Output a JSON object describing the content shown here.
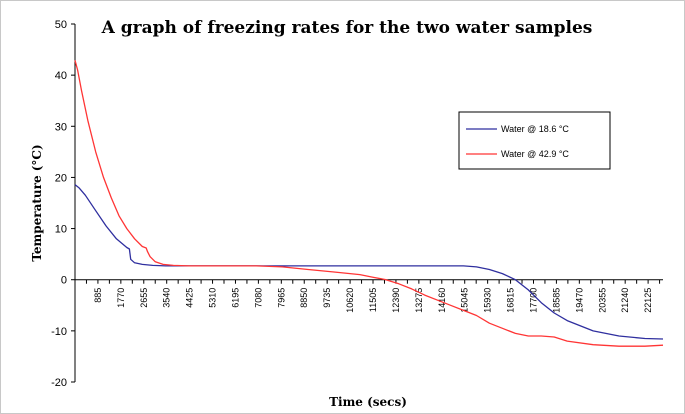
{
  "chart_data": {
    "type": "line",
    "title": "A graph of freezing rates for the two water samples",
    "xlabel": "Time (secs)",
    "ylabel": "Temperature (°C)",
    "xlim": [
      0,
      22700
    ],
    "ylim": [
      -20,
      50
    ],
    "y_ticks": [
      50,
      40,
      30,
      20,
      10,
      0,
      -10,
      -20
    ],
    "x_ticks": [
      "885",
      "1770",
      "2655",
      "3540",
      "4425",
      "5310",
      "6195",
      "7080",
      "7965",
      "8850",
      "9735",
      "10620",
      "11505",
      "12390",
      "13275",
      "14160",
      "15045",
      "15930",
      "16815",
      "17700",
      "18585",
      "19470",
      "20355",
      "21240",
      "22125"
    ],
    "legend_position": "right",
    "series": [
      {
        "name": "Water @ 18.6 °C",
        "color": "#2f2f9f",
        "x": [
          0,
          150,
          400,
          800,
          1200,
          1600,
          2000,
          2100,
          2150,
          2300,
          2600,
          3000,
          3500,
          4500,
          6000,
          8000,
          10000,
          12000,
          14000,
          15000,
          15500,
          16000,
          16500,
          17000,
          17500,
          18000,
          18500,
          19000,
          20000,
          21000,
          22000,
          22700
        ],
        "y": [
          18.6,
          18,
          16.5,
          13.5,
          10.5,
          8,
          6.3,
          6,
          4,
          3.3,
          3,
          2.8,
          2.7,
          2.7,
          2.7,
          2.7,
          2.7,
          2.7,
          2.7,
          2.7,
          2.5,
          2,
          1.2,
          0,
          -2,
          -4.5,
          -6.5,
          -8,
          -10,
          -11,
          -11.5,
          -11.6
        ]
      },
      {
        "name": "Water @ 42.9 °C",
        "color": "#ff3535",
        "x": [
          0,
          100,
          250,
          500,
          800,
          1100,
          1400,
          1700,
          2000,
          2300,
          2600,
          2750,
          2800,
          2900,
          3100,
          3400,
          3800,
          4400,
          5500,
          7000,
          8000,
          9000,
          10000,
          11000,
          11500,
          12000,
          12500,
          13000,
          13500,
          14000,
          14500,
          15000,
          15500,
          16000,
          16500,
          17000,
          17500,
          18000,
          18500,
          19000,
          20000,
          21000,
          22000,
          22700
        ],
        "y": [
          42.9,
          41,
          37,
          31,
          25,
          20,
          16,
          12.5,
          10,
          8,
          6.5,
          6.2,
          5.5,
          4.5,
          3.5,
          3,
          2.8,
          2.7,
          2.7,
          2.7,
          2.5,
          2,
          1.5,
          1,
          0.5,
          0,
          -0.8,
          -1.8,
          -3,
          -4,
          -5,
          -6,
          -7,
          -8.5,
          -9.5,
          -10.5,
          -11,
          -11,
          -11.2,
          -12,
          -12.7,
          -13,
          -13,
          -12.8
        ]
      }
    ]
  }
}
